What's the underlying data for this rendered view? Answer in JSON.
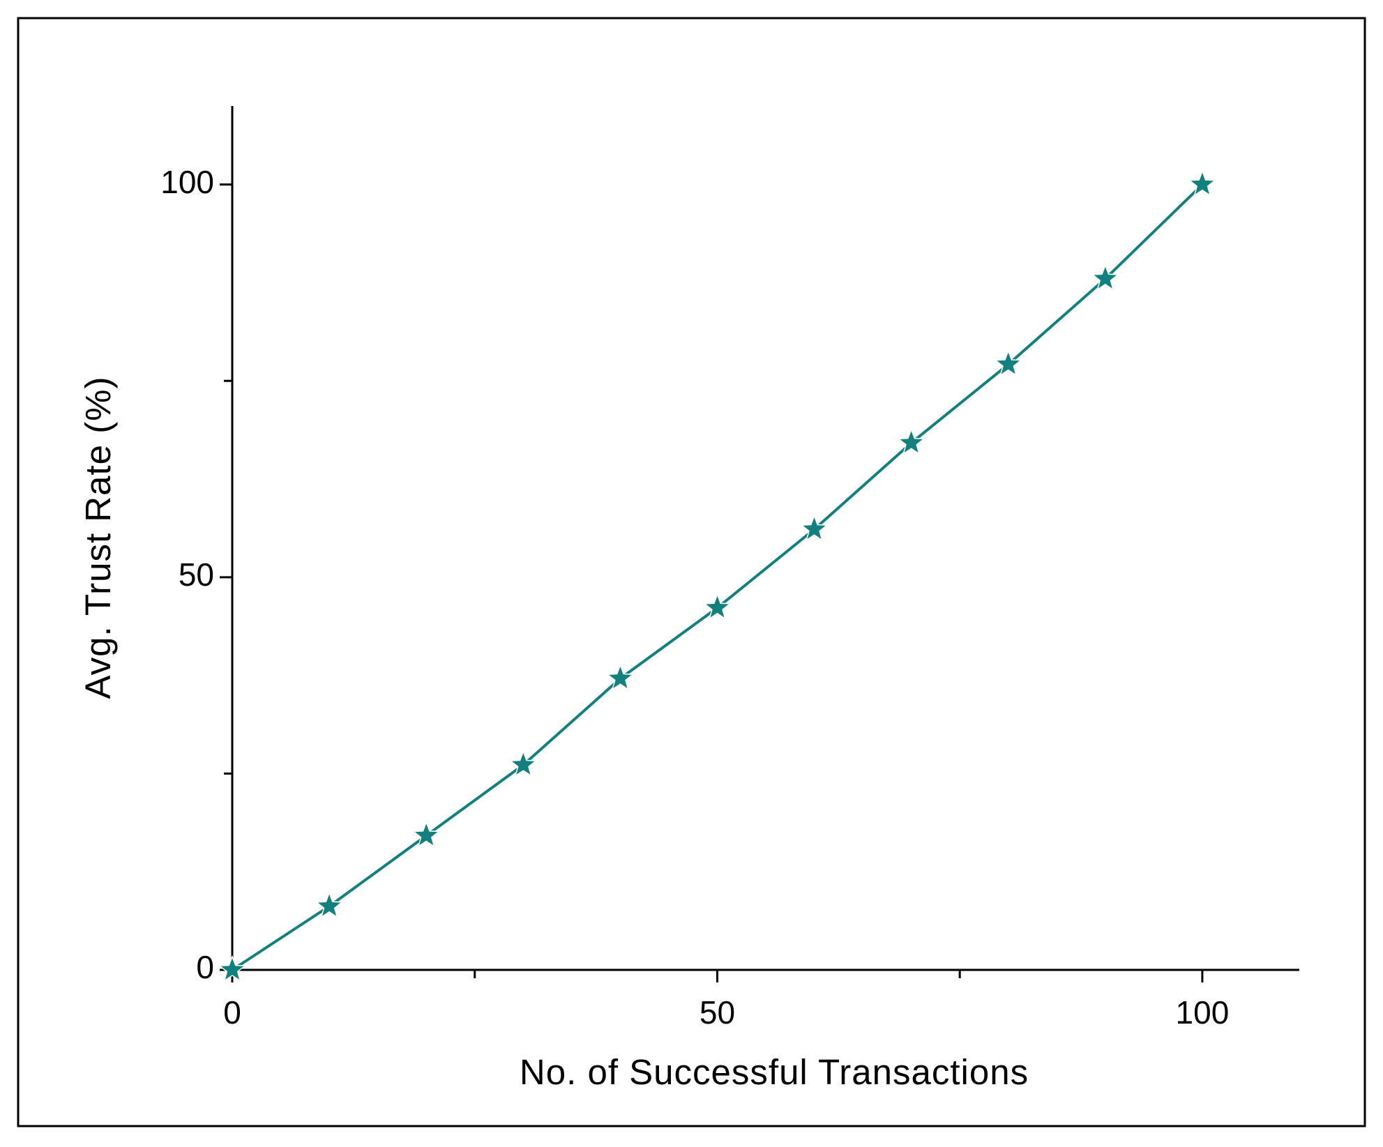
{
  "chart_data": {
    "type": "line",
    "xlabel": "No. of Successful Transactions",
    "ylabel": "Avg. Trust Rate (%)",
    "x": [
      0,
      10,
      20,
      30,
      40,
      50,
      60,
      70,
      80,
      90,
      100
    ],
    "series": [
      {
        "color": "#138080",
        "marker": "star",
        "values": [
          0,
          8.1,
          17.1,
          26.1,
          37.1,
          46.1,
          56.1,
          67.1,
          77.1,
          88.0,
          100
        ]
      }
    ],
    "xlim": [
      0,
      110
    ],
    "ylim": [
      0,
      110
    ],
    "xticks": [
      0,
      50,
      100
    ],
    "yticks": [
      0,
      50,
      100
    ],
    "xminor_ticks": [
      25,
      75
    ],
    "yminor_ticks": [
      25,
      75
    ],
    "grid": false
  }
}
